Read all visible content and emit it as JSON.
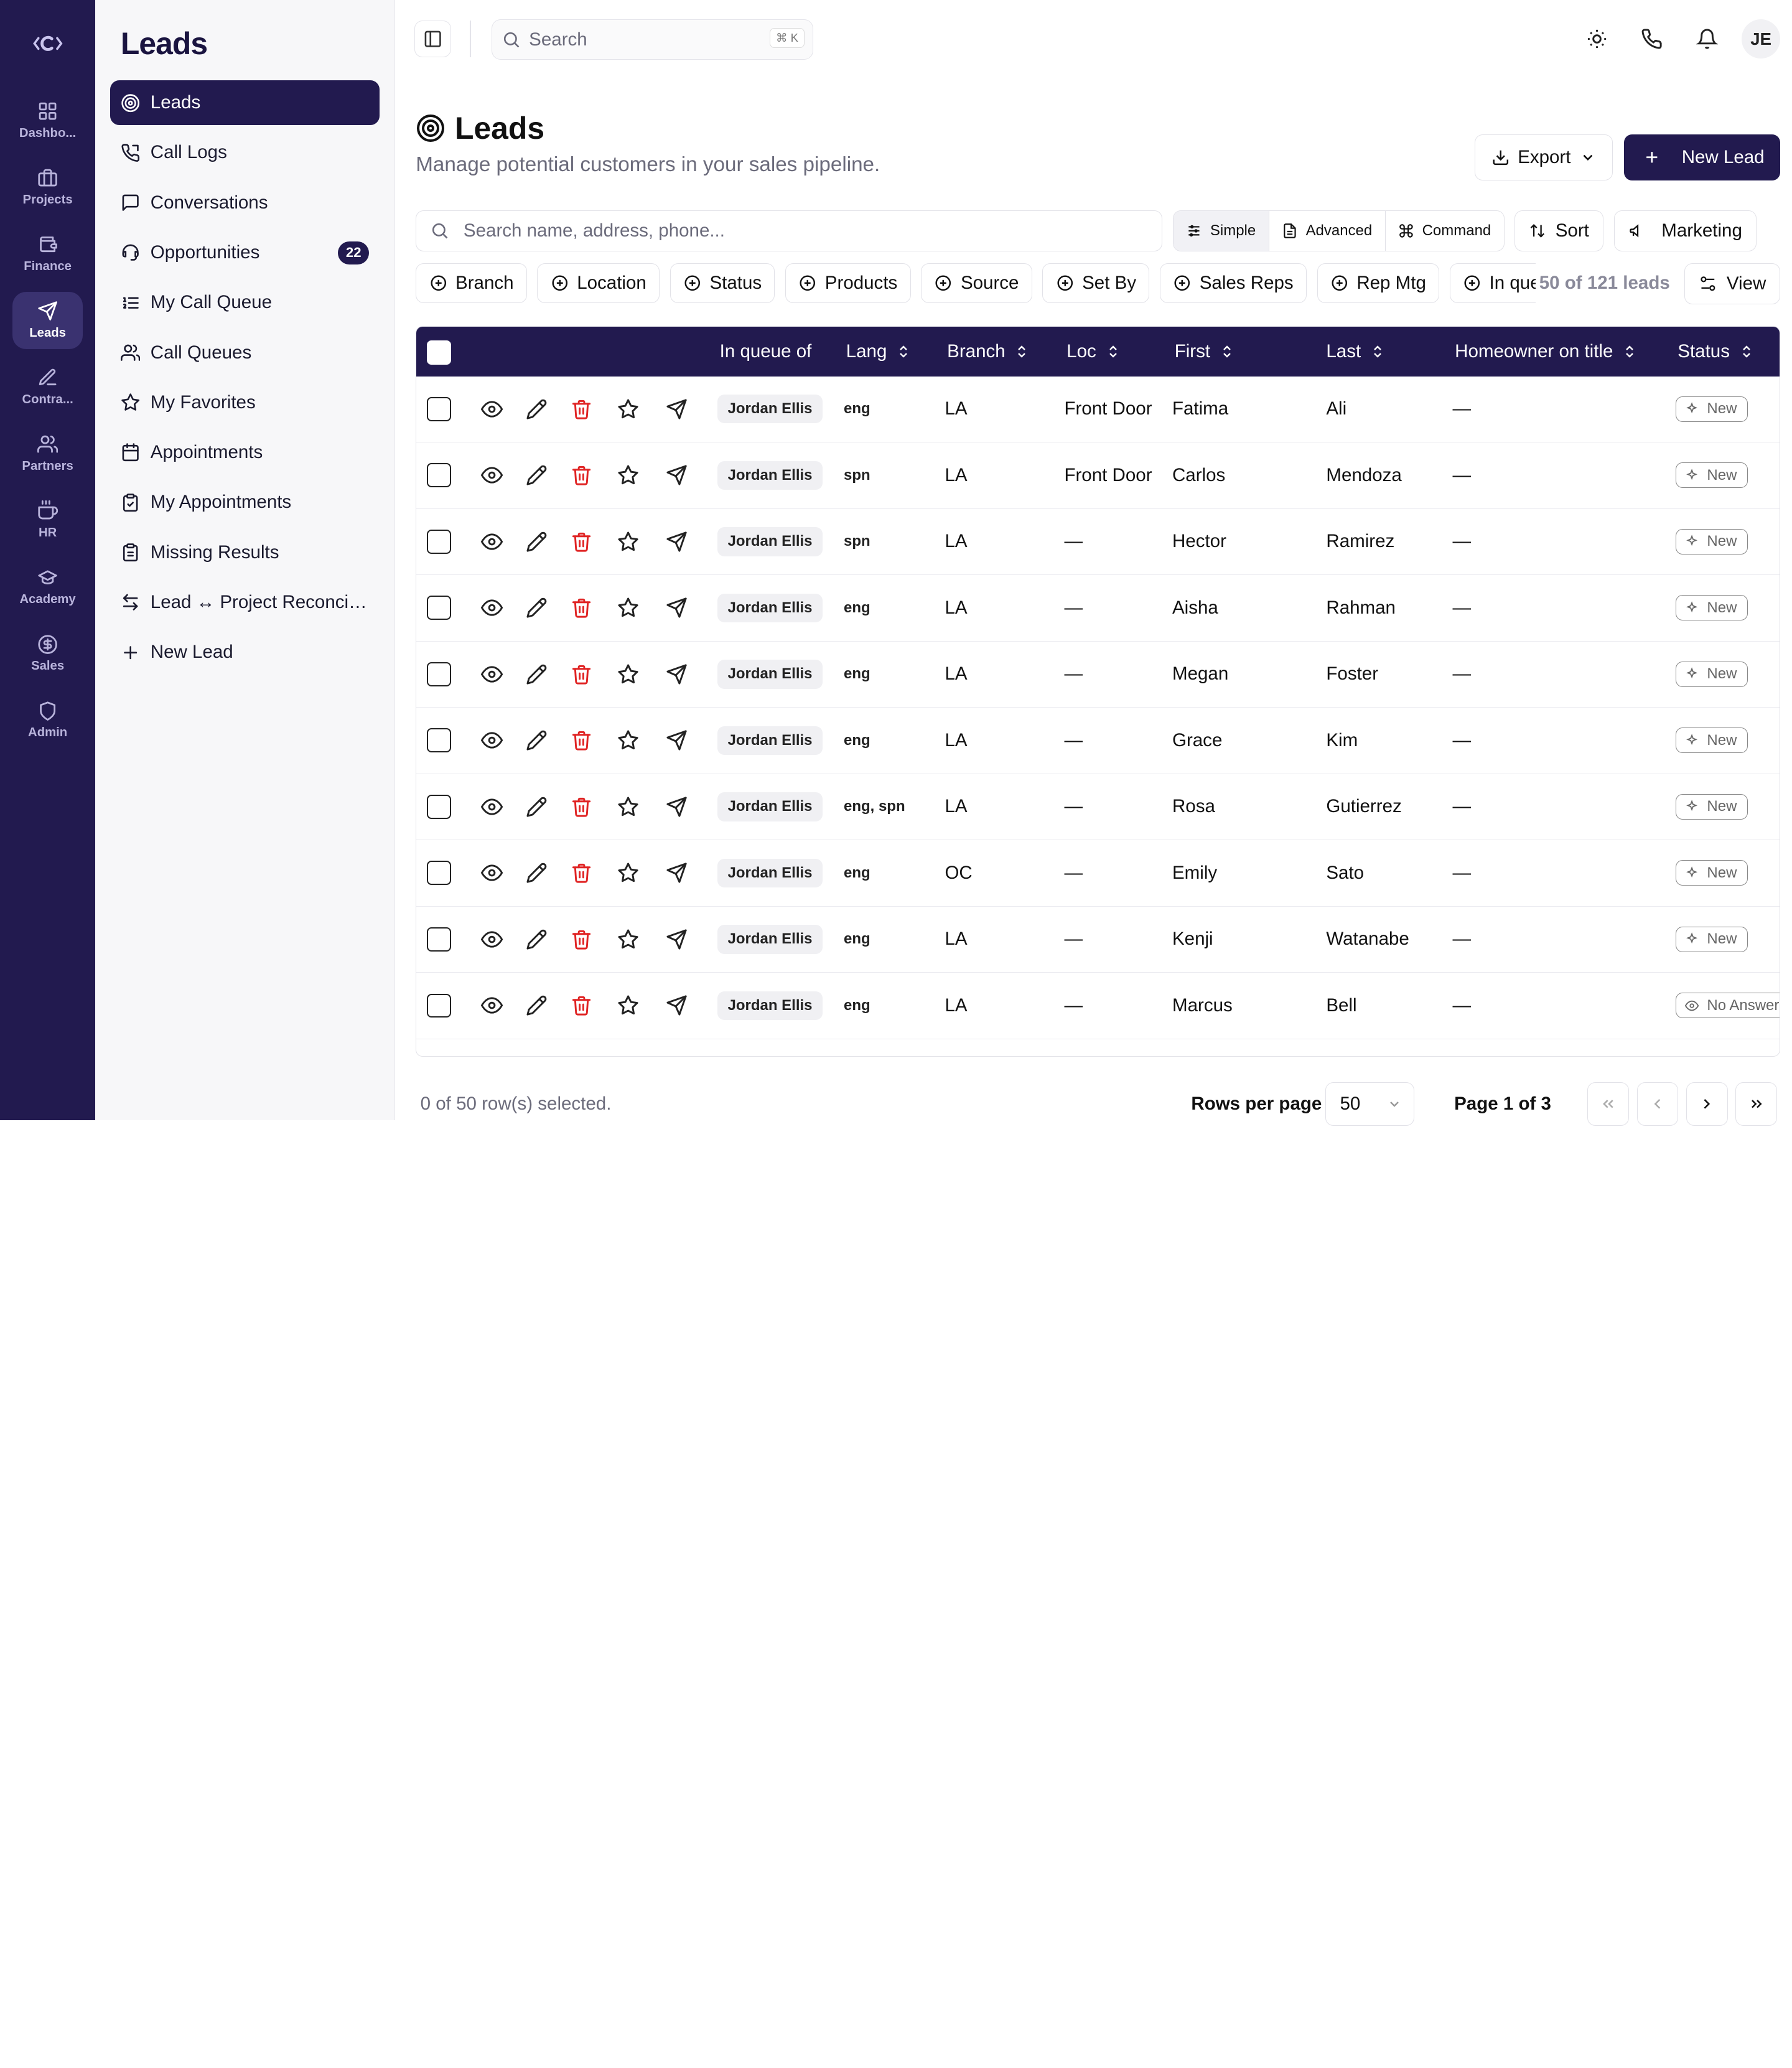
{
  "rail": {
    "items": [
      {
        "label": "Dashbo...",
        "icon": "grid-icon"
      },
      {
        "label": "Projects",
        "icon": "briefcase-icon"
      },
      {
        "label": "Finance",
        "icon": "wallet-icon"
      },
      {
        "label": "Leads",
        "icon": "send-icon",
        "active": true
      },
      {
        "label": "Contra...",
        "icon": "edit-icon"
      },
      {
        "label": "Partners",
        "icon": "users-icon"
      },
      {
        "label": "HR",
        "icon": "coffee-icon"
      },
      {
        "label": "Academy",
        "icon": "graduation-cap-icon"
      },
      {
        "label": "Sales",
        "icon": "dollar-circle-icon"
      },
      {
        "label": "Admin",
        "icon": "shield-icon"
      }
    ]
  },
  "sidebar": {
    "title": "Leads",
    "items": [
      {
        "label": "Leads",
        "icon": "target-icon",
        "active": true
      },
      {
        "label": "Call Logs",
        "icon": "phone-log-icon"
      },
      {
        "label": "Conversations",
        "icon": "message-icon"
      },
      {
        "label": "Opportunities",
        "icon": "headset-icon",
        "count": "22"
      },
      {
        "label": "My Call Queue",
        "icon": "list-ordered-icon"
      },
      {
        "label": "Call Queues",
        "icon": "users-icon"
      },
      {
        "label": "My Favorites",
        "icon": "star-icon"
      },
      {
        "label": "Appointments",
        "icon": "calendar-icon"
      },
      {
        "label": "My Appointments",
        "icon": "clipboard-icon"
      },
      {
        "label": "Missing Results",
        "icon": "clipboard-list-icon"
      },
      {
        "label": "Lead ↔ Project Reconcili...",
        "icon": "arrows-swap-icon"
      },
      {
        "label": "New Lead",
        "icon": "plus-icon"
      }
    ]
  },
  "topbar": {
    "search_placeholder": "Search",
    "shortcut": "⌘ K",
    "avatar": "JE"
  },
  "page": {
    "title": "Leads",
    "subtitle": "Manage potential customers in your sales pipeline.",
    "export_label": "Export",
    "new_lead_label": "New Lead"
  },
  "filters": {
    "search_placeholder": "Search name, address, phone...",
    "modes": [
      "Simple",
      "Advanced",
      "Command"
    ],
    "sort_label": "Sort",
    "marketing_label": "Marketing",
    "chips": [
      "Branch",
      "Location",
      "Status",
      "Products",
      "Source",
      "Set By",
      "Sales Reps",
      "Rep Mtg",
      "In queue"
    ],
    "lead_count": "50 of 121 leads",
    "view_label": "View"
  },
  "table": {
    "columns": [
      "In queue of",
      "Lang",
      "Branch",
      "Loc",
      "First",
      "Last",
      "Homeowner on title",
      "Status"
    ],
    "rows": [
      {
        "queue": "Jordan Ellis",
        "lang": "eng",
        "branch": "LA",
        "loc": "Front Door",
        "first": "Fatima",
        "last": "Ali",
        "homeowner": "—",
        "status": "New"
      },
      {
        "queue": "Jordan Ellis",
        "lang": "spn",
        "branch": "LA",
        "loc": "Front Door",
        "first": "Carlos",
        "last": "Mendoza",
        "homeowner": "—",
        "status": "New"
      },
      {
        "queue": "Jordan Ellis",
        "lang": "spn",
        "branch": "LA",
        "loc": "—",
        "first": "Hector",
        "last": "Ramirez",
        "homeowner": "—",
        "status": "New"
      },
      {
        "queue": "Jordan Ellis",
        "lang": "eng",
        "branch": "LA",
        "loc": "—",
        "first": "Aisha",
        "last": "Rahman",
        "homeowner": "—",
        "status": "New"
      },
      {
        "queue": "Jordan Ellis",
        "lang": "eng",
        "branch": "LA",
        "loc": "—",
        "first": "Megan",
        "last": "Foster",
        "homeowner": "—",
        "status": "New"
      },
      {
        "queue": "Jordan Ellis",
        "lang": "eng",
        "branch": "LA",
        "loc": "—",
        "first": "Grace",
        "last": "Kim",
        "homeowner": "—",
        "status": "New"
      },
      {
        "queue": "Jordan Ellis",
        "lang": "eng, spn",
        "branch": "LA",
        "loc": "—",
        "first": "Rosa",
        "last": "Gutierrez",
        "homeowner": "—",
        "status": "New"
      },
      {
        "queue": "Jordan Ellis",
        "lang": "eng",
        "branch": "OC",
        "loc": "—",
        "first": "Emily",
        "last": "Sato",
        "homeowner": "—",
        "status": "New"
      },
      {
        "queue": "Jordan Ellis",
        "lang": "eng",
        "branch": "LA",
        "loc": "—",
        "first": "Kenji",
        "last": "Watanabe",
        "homeowner": "—",
        "status": "New"
      },
      {
        "queue": "Jordan Ellis",
        "lang": "eng",
        "branch": "LA",
        "loc": "—",
        "first": "Marcus",
        "last": "Bell",
        "homeowner": "—",
        "status": "No Answer"
      }
    ]
  },
  "footer": {
    "selection": "0 of 50 row(s) selected.",
    "rows_per_page_label": "Rows per page",
    "rows_per_page": "50",
    "page_text": "Page 1 of 3"
  },
  "colors": {
    "brand": "#221a4f",
    "danger": "#e02424",
    "muted": "#6b6b7b"
  }
}
